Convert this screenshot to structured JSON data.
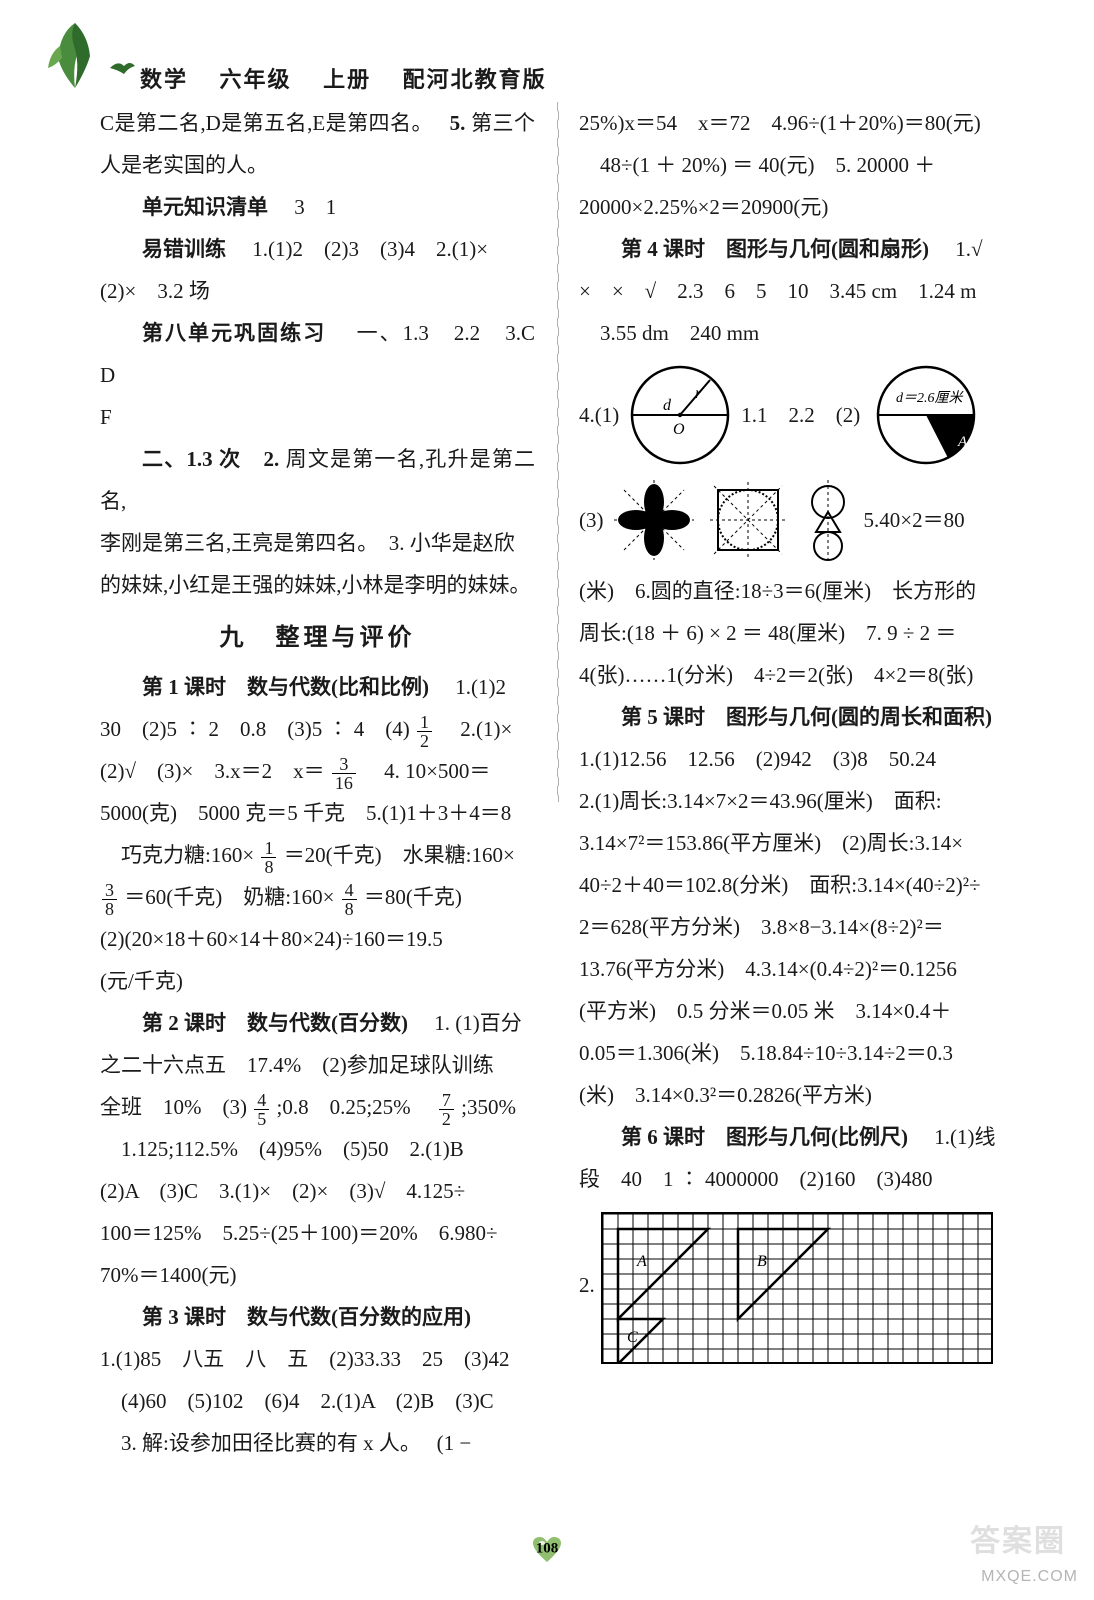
{
  "header": {
    "subject": "数学",
    "grade": "六年级",
    "volume": "上册",
    "edition": "配河北教育版"
  },
  "decor": {
    "leaf_colors": [
      "#2f6b2b",
      "#4a8c3e",
      "#6aa84f"
    ],
    "bird_color": "#2f6b2b",
    "heart_color": "#8fbf6f",
    "heart_highlight": "#ffffff"
  },
  "divider": {
    "color": "#7a7a7a",
    "amplitude": 3,
    "wavelength": 18
  },
  "page_number": "108",
  "watermarks": {
    "site": "MXQE.COM",
    "brand": "答案圈"
  },
  "left_column": {
    "p1": "C是第二名,D是第五名,E是第四名。",
    "p1b": "5.",
    "p1c": "第三个人是老实国的人。",
    "p2a": "单元知识清单",
    "p2b": "3　1",
    "p3a": "易错训练",
    "p3b": "1.(1)2　(2)3　(3)4　2.(1)×",
    "p4": "(2)×　3.2 场",
    "p5a": "第八单元巩固练习",
    "p5b": "一、1.3　2.2　3.C　D",
    "p6": "F",
    "p7a": "二、1.3 次　2.",
    "p7b": "周文是第一名,孔升是第二名,",
    "p8": "李刚是第三名,王亮是第四名。　3. 小华是赵欣",
    "p9": "的妹妹,小红是王强的妹妹,小林是李明的妹妹。",
    "section_title": "九　整理与评价",
    "p10a": "第 1 课时　数与代数(比和比例)",
    "p10b": "1.(1)2",
    "p11a": "30　(2)5 ∶ 2　0.8　(3)5 ∶ 4　(4)",
    "p11b": "2.(1)×",
    "p12a": "(2)√　(3)×　3.x＝2　x＝",
    "p12b": "4. 10×500＝",
    "p13": "5000(克)　5000 克＝5 千克　5.(1)1＋3＋4＝8",
    "p14a": "　巧克力糖:160×",
    "p14b": "＝20(千克)　水果糖:160×",
    "p15a": "＝60(千克)　奶糖:160×",
    "p15b": "＝80(千克)",
    "p16": "(2)(20×18＋60×14＋80×24)÷160＝19.5",
    "p17": "(元/千克)",
    "p18a": "第 2 课时　数与代数(百分数)",
    "p18b": "1. (1)百分",
    "p19": "之二十六点五　17.4%　(2)参加足球队训练",
    "p20a": "全班　10%　(3)",
    "p20b": ";0.8　0.25;25%　",
    "p20c": ";350%",
    "p21": "　1.125;112.5%　(4)95%　(5)50　2.(1)B",
    "p22": "(2)A　(3)C　3.(1)×　(2)×　(3)√　4.125÷",
    "p23": "100＝125%　5.25÷(25＋100)＝20%　6.980÷",
    "p24": "70%＝1400(元)",
    "p25a": "第 3 课时　数与代数(百分数的应用)",
    "p26": "1.(1)85　八五　八　五　(2)33.33　25　(3)42",
    "p27": "　(4)60　(5)102　(6)4　2.(1)A　(2)B　(3)C",
    "p28a": "　3. 解:设参加田径比赛的有 x 人。",
    "p28b": "(1 −",
    "fractions": {
      "f_1_2": {
        "num": "1",
        "den": "2"
      },
      "f_3_16": {
        "num": "3",
        "den": "16"
      },
      "f_1_8": {
        "num": "1",
        "den": "8"
      },
      "f_3_8": {
        "num": "3",
        "den": "8"
      },
      "f_4_8": {
        "num": "4",
        "den": "8"
      },
      "f_4_5": {
        "num": "4",
        "den": "5"
      },
      "f_7_2": {
        "num": "7",
        "den": "2"
      }
    }
  },
  "right_column": {
    "p1": "25%)x＝54　x＝72　4.96÷(1＋20%)＝80(元)",
    "p2": "　48÷(1 ＋ 20%) ＝ 40(元)　5. 20000 ＋",
    "p3": "20000×2.25%×2＝20900(元)",
    "p4a": "第 4 课时　图形与几何(圆和扇形)",
    "p4b": "1.√",
    "p5": "×　×　√　2.3　6　5　10　3.45 cm　1.24 m",
    "p6": "　3.55 dm　240 mm",
    "fig4": {
      "label": "4.(1)",
      "mid": "1.1　2.2　(2)",
      "circle1": {
        "r_label": "r",
        "d_label": "d",
        "O_label": "O"
      },
      "circle2": {
        "d_label": "d＝2.6厘米",
        "A_label": "A",
        "sector_fill": "#000000"
      }
    },
    "fig3": {
      "label": "(3)",
      "after": "5.40×2＝80"
    },
    "p7": "(米)　6.圆的直径:18÷3＝6(厘米)　长方形的",
    "p8": "周长:(18 ＋ 6) × 2 ＝ 48(厘米)　7. 9 ÷ 2 ＝",
    "p9": "4(张)……1(分米)　4÷2＝2(张)　4×2＝8(张)",
    "p10a": "第 5 课时　图形与几何(圆的周长和面积)",
    "p11": "1.(1)12.56　12.56　(2)942　(3)8　50.24",
    "p12": "2.(1)周长:3.14×7×2＝43.96(厘米)　面积:",
    "p13": "3.14×7²＝153.86(平方厘米)　(2)周长:3.14×",
    "p14": "40÷2＋40＝102.8(分米)　面积:3.14×(40÷2)²÷",
    "p15": "2＝628(平方分米)　3.8×8−3.14×(8÷2)²＝",
    "p16": "13.76(平方分米)　4.3.14×(0.4÷2)²＝0.1256",
    "p17": "(平方米)　0.5 分米＝0.05 米　3.14×0.4＋",
    "p18": "0.05＝1.306(米)　5.18.84÷10÷3.14÷2＝0.3",
    "p19": "(米)　3.14×0.3²＝0.2826(平方米)",
    "p20a": "第 6 课时　图形与几何(比例尺)",
    "p20b": "1.(1)线",
    "p21": "段　40　1 ∶ 4000000　(2)160　(3)480",
    "grid": {
      "label": "2.",
      "cols": 26,
      "rows": 10,
      "cell": 15,
      "stroke": "#000000",
      "tri_A": {
        "label": "A",
        "points": [
          [
            1,
            1
          ],
          [
            7,
            1
          ],
          [
            1,
            7
          ]
        ],
        "fill": "none"
      },
      "tri_B": {
        "label": "B",
        "points": [
          [
            9,
            1
          ],
          [
            15,
            1
          ],
          [
            9,
            7
          ]
        ],
        "fill": "none"
      },
      "tri_C": {
        "label": "C",
        "points": [
          [
            1,
            7
          ],
          [
            4,
            7
          ],
          [
            1,
            10
          ]
        ],
        "fill": "none"
      }
    }
  }
}
